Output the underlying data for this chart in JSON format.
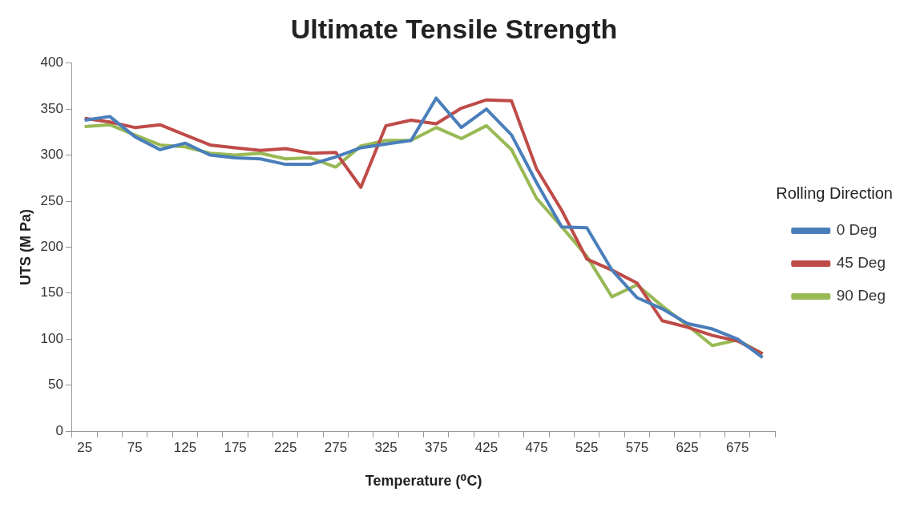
{
  "chart_data": {
    "type": "line",
    "title": "Ultimate Tensile Strength",
    "xlabel": "Temperature (⁰C)",
    "ylabel": "UTS (M Pa)",
    "legend_title": "Rolling Direction",
    "categories": [
      "25",
      null,
      "75",
      null,
      "125",
      null,
      "175",
      null,
      "225",
      null,
      "275",
      null,
      "325",
      null,
      "375",
      null,
      "425",
      null,
      "475",
      null,
      "525",
      null,
      "575",
      null,
      "625",
      null,
      "675",
      null
    ],
    "series": [
      {
        "name": "0 Deg",
        "color": "#4a7ebb",
        "values": [
          338,
          342,
          320,
          306,
          313,
          300,
          297,
          296,
          290,
          290,
          298,
          308,
          312,
          316,
          362,
          330,
          350,
          322,
          270,
          222,
          221,
          175,
          145,
          133,
          117,
          111,
          100,
          80
        ]
      },
      {
        "name": "45 Deg",
        "color": "#be4b48",
        "values": [
          340,
          336,
          330,
          333,
          322,
          311,
          308,
          305,
          307,
          302,
          303,
          265,
          332,
          338,
          334,
          351,
          360,
          359,
          285,
          240,
          187,
          175,
          161,
          120,
          113,
          104,
          98,
          84
        ]
      },
      {
        "name": "90 Deg",
        "color": "#98b954",
        "values": [
          331,
          333,
          322,
          311,
          309,
          302,
          300,
          302,
          296,
          297,
          287,
          310,
          316,
          316,
          330,
          318,
          332,
          306,
          253,
          222,
          190,
          146,
          159,
          136,
          115,
          93,
          99,
          84
        ]
      }
    ],
    "ylim": [
      0,
      400
    ],
    "yticks": [
      0,
      50,
      100,
      150,
      200,
      250,
      300,
      350,
      400
    ],
    "grid": false,
    "legend": "right",
    "marker": "none",
    "line_style": "solid"
  }
}
